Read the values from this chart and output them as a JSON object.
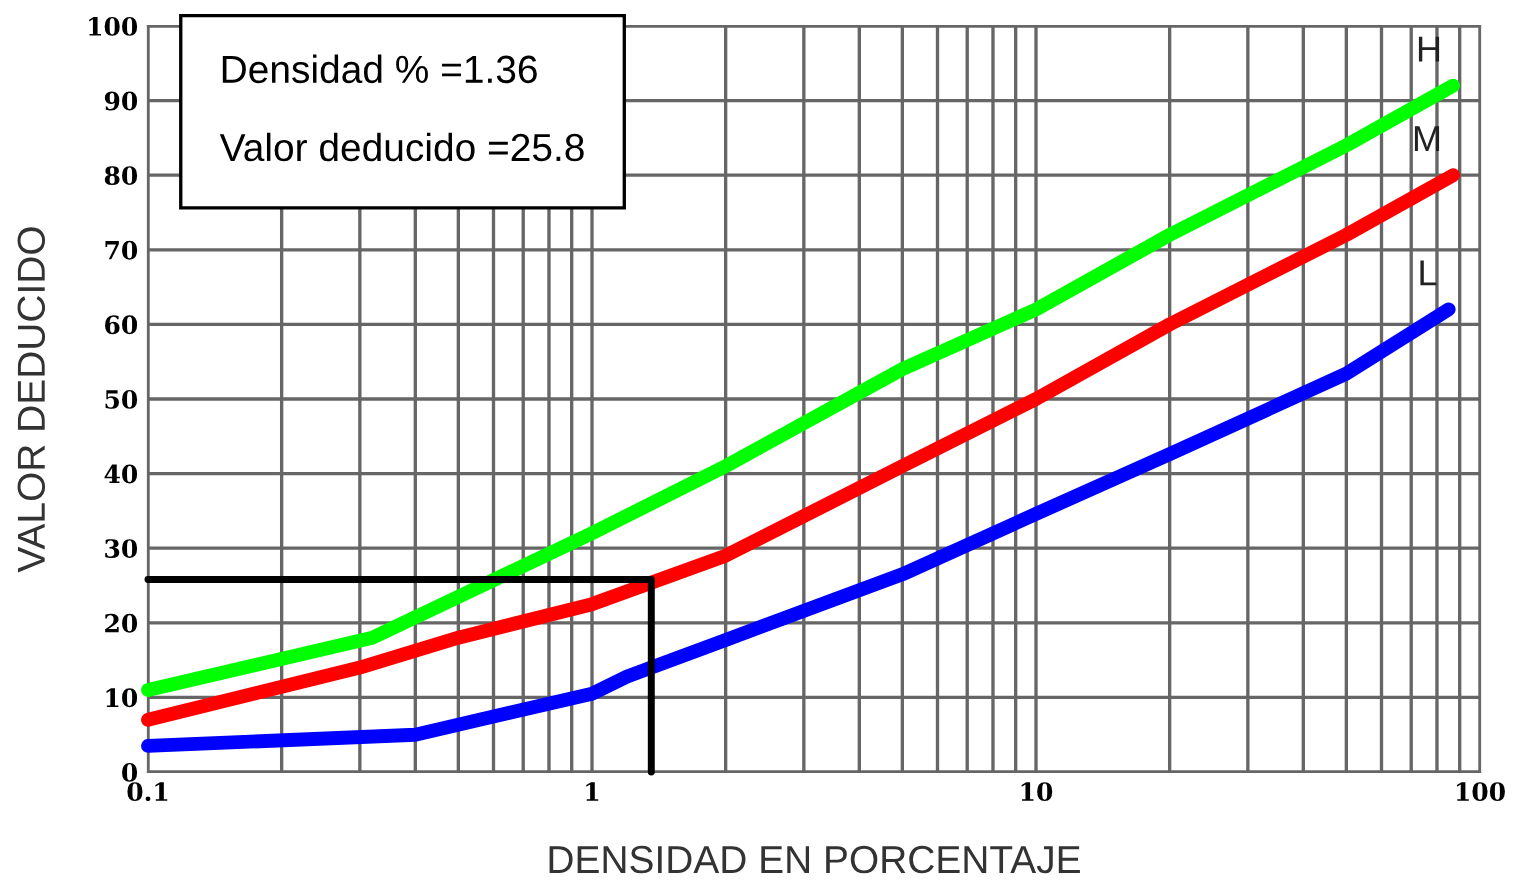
{
  "chart_data": {
    "type": "line",
    "xlabel": "DENSIDAD EN PORCENTAJE",
    "ylabel": "VALOR DEDUCIDO",
    "log": "x",
    "grid": true,
    "xlim": [
      0.1,
      100
    ],
    "ylim": [
      0,
      100
    ],
    "xticks": [
      0.1,
      1,
      10,
      100
    ],
    "yticks": [
      0,
      10,
      20,
      30,
      40,
      50,
      60,
      70,
      80,
      90,
      100
    ],
    "annotations": [
      "Densidad % =1.36",
      "Valor deducido =25.8"
    ],
    "series": [
      {
        "name": "H",
        "color": "#00ff00",
        "x": [
          0.1,
          0.32,
          1,
          2,
          5,
          10,
          20,
          50,
          87
        ],
        "values": [
          11,
          18,
          32,
          41,
          54,
          62,
          72,
          84,
          92
        ]
      },
      {
        "name": "M",
        "color": "#ff0000",
        "x": [
          0.1,
          0.3,
          0.5,
          1,
          2,
          5,
          10,
          20,
          50,
          87
        ],
        "values": [
          7,
          14,
          18,
          22.5,
          29,
          41,
          50,
          60,
          72,
          80
        ]
      },
      {
        "name": "L",
        "color": "#0000ff",
        "x": [
          0.1,
          0.4,
          1,
          1.2,
          2,
          5,
          10,
          20,
          50,
          85
        ],
        "values": [
          3.5,
          5,
          10.5,
          12.8,
          17.7,
          26.5,
          34.6,
          42.6,
          53.4,
          62
        ]
      },
      {
        "color": "#000000",
        "x": [
          0.1,
          1.36,
          1.36
        ],
        "values": [
          25.8,
          25.8,
          0
        ]
      }
    ]
  }
}
